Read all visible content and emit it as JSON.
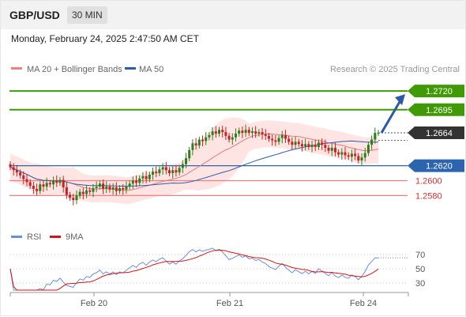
{
  "header": {
    "pair": "GBP/USD",
    "timeframe": "30 MIN"
  },
  "timestamp": "Monday, February 24, 2025 2:47:50 AM CET",
  "legend": {
    "ma20_label": "MA 20 + Bollinger Bands",
    "ma50_label": "MA 50",
    "credit": "Research © 2025 Trading Central",
    "rsi_label": "RSI",
    "nine_ma_label": "9MA"
  },
  "colors": {
    "green": "#3f9a06",
    "red": "#f08080",
    "blue": "#2c64b0",
    "band": "#ffd9d9",
    "ma20": "#e87878",
    "ma50": "#2c5ca8",
    "candle_up": "#2e7d1c",
    "candle_down": "#cc1f1f",
    "current_tag": "#333333",
    "arrow": "#2b5aa0"
  },
  "chart_data": [
    {
      "type": "candlestick",
      "ylim": [
        1.2555,
        1.2735
      ],
      "x_tick_labels": [
        "Feb 20",
        "Feb 21",
        "Feb 24"
      ],
      "levels": [
        {
          "value": 1.272,
          "label": "1.2720",
          "kind": "resistance"
        },
        {
          "value": 1.2695,
          "label": "1.2695",
          "kind": "resistance"
        },
        {
          "value": 1.2664,
          "label": "1.2664",
          "kind": "current"
        },
        {
          "value": 1.262,
          "label": "1.2620",
          "kind": "pivot"
        },
        {
          "value": 1.26,
          "label": "1.2600",
          "kind": "support"
        },
        {
          "value": 1.258,
          "label": "1.2580",
          "kind": "support"
        }
      ],
      "closes": [
        1.2618,
        1.2614,
        1.2611,
        1.2607,
        1.2602,
        1.2598,
        1.2593,
        1.2589,
        1.2586,
        1.2595,
        1.2592,
        1.2597,
        1.2595,
        1.26,
        1.2597,
        1.2601,
        1.2591,
        1.2581,
        1.2577,
        1.2574,
        1.258,
        1.2585,
        1.2582,
        1.2587,
        1.2585,
        1.259,
        1.2592,
        1.2596,
        1.2589,
        1.2592,
        1.2588,
        1.2591,
        1.2586,
        1.259,
        1.2588,
        1.2592,
        1.2596,
        1.26,
        1.2597,
        1.2603,
        1.2606,
        1.2602,
        1.2608,
        1.2612,
        1.261,
        1.2615,
        1.2618,
        1.2614,
        1.261,
        1.2614,
        1.2611,
        1.2617,
        1.2622,
        1.263,
        1.2641,
        1.265,
        1.2647,
        1.2655,
        1.2653,
        1.2658,
        1.2661,
        1.2666,
        1.2663,
        1.2668,
        1.2665,
        1.266,
        1.2655,
        1.2658,
        1.2663,
        1.2667,
        1.2664,
        1.2668,
        1.2664,
        1.2666,
        1.2663,
        1.2665,
        1.2662,
        1.266,
        1.2656,
        1.2654,
        1.2652,
        1.2657,
        1.2661,
        1.2656,
        1.2652,
        1.2648,
        1.2652,
        1.2649,
        1.2646,
        1.2649,
        1.2645,
        1.2648,
        1.2645,
        1.2651,
        1.2648,
        1.2644,
        1.264,
        1.2644,
        1.2638,
        1.2635,
        1.2638,
        1.2634,
        1.2632,
        1.2636,
        1.2633,
        1.2627,
        1.2631,
        1.2637,
        1.2648,
        1.2655,
        1.2664,
        1.2664
      ]
    },
    {
      "type": "line",
      "name": "RSI",
      "ylim": [
        20,
        80
      ],
      "y_ticks": [
        70,
        50,
        30
      ]
    }
  ]
}
